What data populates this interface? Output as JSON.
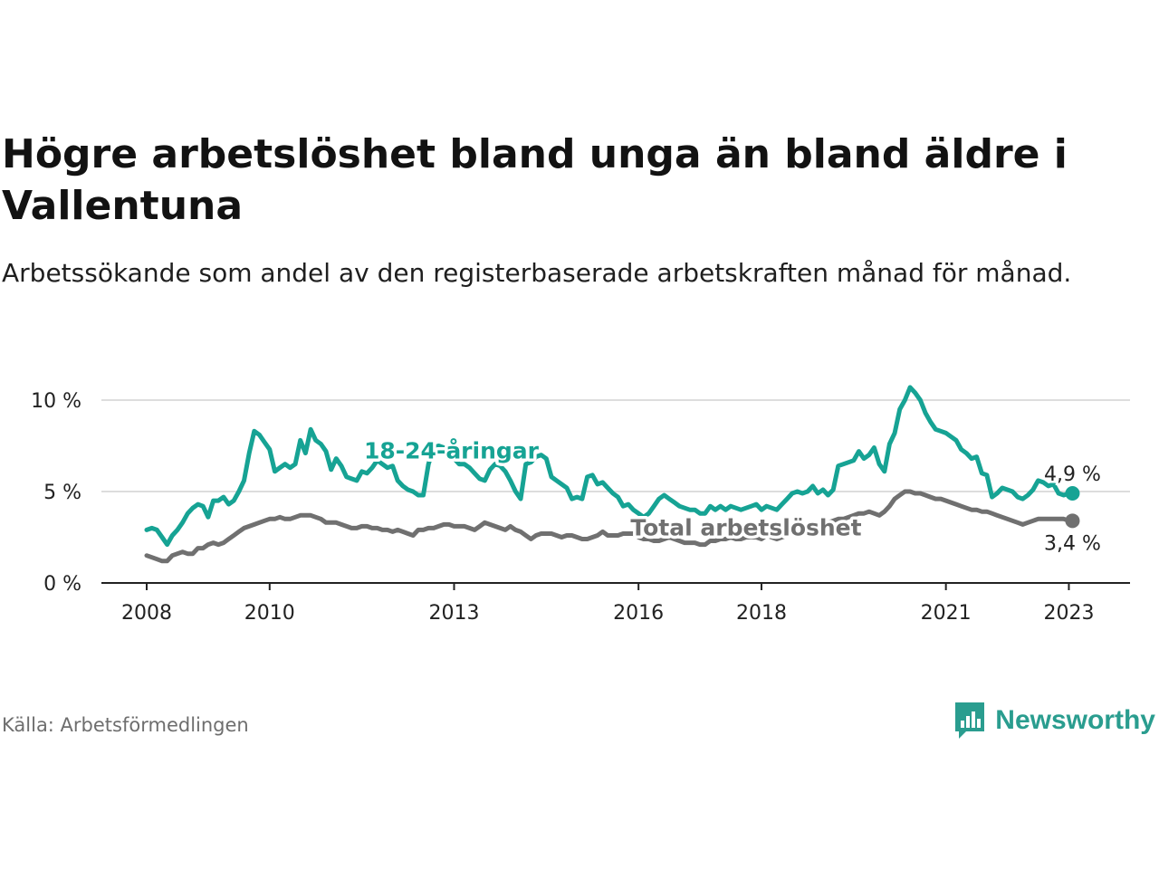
{
  "header": {
    "title": "Högre arbetslöshet bland unga än bland äldre i Vallentuna",
    "subtitle": "Arbetssökande som andel av den registerbaserade arbetskraften månad för månad."
  },
  "footer": {
    "source": "Källa: Arbetsförmedlingen",
    "brand": "Newsworthy",
    "brand_icon": "newsworthy-logo-icon"
  },
  "colors": {
    "youth": "#16a394",
    "total": "#707070",
    "grid": "#dddddd",
    "axis": "#222222",
    "brand": "#2a9d8f"
  },
  "chart_data": {
    "type": "line",
    "title": "Högre arbetslöshet bland unga än bland äldre i Vallentuna",
    "xlabel": "",
    "ylabel": "",
    "x_start": 2008.0,
    "x_step_months": 1,
    "xlim": [
      2008.0,
      2023.17
    ],
    "ylim": [
      0,
      10
    ],
    "y_ticks": [
      0,
      5,
      10
    ],
    "y_tick_labels": [
      "0 %",
      "5 %",
      "10 %"
    ],
    "x_ticks": [
      2008,
      2010,
      2013,
      2016,
      2018,
      2021,
      2023
    ],
    "x_tick_labels": [
      "2008",
      "2010",
      "2013",
      "2016",
      "2018",
      "2021",
      "2023"
    ],
    "grid": true,
    "series": [
      {
        "name": "18-24-åringar",
        "label": "18-24-åringar",
        "end_label": "4,9 %",
        "color": "#16a394",
        "values": [
          2.9,
          3.0,
          2.9,
          2.5,
          2.1,
          2.6,
          2.9,
          3.3,
          3.8,
          4.1,
          4.3,
          4.2,
          3.6,
          4.5,
          4.5,
          4.7,
          4.3,
          4.5,
          5.0,
          5.6,
          7.1,
          8.3,
          8.1,
          7.7,
          7.3,
          6.1,
          6.3,
          6.5,
          6.3,
          6.5,
          7.8,
          7.1,
          8.4,
          7.8,
          7.6,
          7.2,
          6.2,
          6.8,
          6.4,
          5.8,
          5.7,
          5.6,
          6.1,
          6.0,
          6.3,
          6.7,
          6.5,
          6.3,
          6.4,
          5.6,
          5.3,
          5.1,
          5.0,
          4.8,
          4.8,
          6.5,
          7.4,
          7.5,
          7.4,
          7.3,
          6.8,
          6.5,
          6.5,
          6.3,
          6.0,
          5.7,
          5.6,
          6.2,
          6.5,
          6.4,
          6.1,
          5.6,
          5.0,
          4.6,
          6.5,
          6.6,
          6.9,
          7.0,
          6.8,
          5.8,
          5.6,
          5.4,
          5.2,
          4.6,
          4.7,
          4.6,
          5.8,
          5.9,
          5.4,
          5.5,
          5.2,
          4.9,
          4.7,
          4.2,
          4.3,
          4.0,
          3.8,
          3.6,
          3.8,
          4.2,
          4.6,
          4.8,
          4.6,
          4.4,
          4.2,
          4.1,
          4.0,
          4.0,
          3.8,
          3.8,
          4.2,
          4.0,
          4.2,
          4.0,
          4.2,
          4.1,
          4.0,
          4.1,
          4.2,
          4.3,
          4.0,
          4.2,
          4.1,
          4.0,
          4.3,
          4.6,
          4.9,
          5.0,
          4.9,
          5.0,
          5.3,
          4.9,
          5.1,
          4.8,
          5.1,
          6.4,
          6.5,
          6.6,
          6.7,
          7.2,
          6.8,
          7.0,
          7.4,
          6.5,
          6.1,
          7.6,
          8.2,
          9.5,
          10.0,
          10.7,
          10.4,
          10.0,
          9.3,
          8.8,
          8.4,
          8.3,
          8.2,
          8.0,
          7.8,
          7.3,
          7.1,
          6.8,
          6.9,
          6.0,
          5.9,
          4.7,
          4.9,
          5.2,
          5.1,
          5.0,
          4.7,
          4.6,
          4.8,
          5.1,
          5.6,
          5.5,
          5.3,
          5.4,
          4.9,
          4.8,
          4.9
        ]
      },
      {
        "name": "Total arbetslöshet",
        "label": "Total arbetslöshet",
        "end_label": "3,4 %",
        "color": "#707070",
        "values": [
          1.5,
          1.4,
          1.3,
          1.2,
          1.2,
          1.5,
          1.6,
          1.7,
          1.6,
          1.6,
          1.9,
          1.9,
          2.1,
          2.2,
          2.1,
          2.2,
          2.4,
          2.6,
          2.8,
          3.0,
          3.1,
          3.2,
          3.3,
          3.4,
          3.5,
          3.5,
          3.6,
          3.5,
          3.5,
          3.6,
          3.7,
          3.7,
          3.7,
          3.6,
          3.5,
          3.3,
          3.3,
          3.3,
          3.2,
          3.1,
          3.0,
          3.0,
          3.1,
          3.1,
          3.0,
          3.0,
          2.9,
          2.9,
          2.8,
          2.9,
          2.8,
          2.7,
          2.6,
          2.9,
          2.9,
          3.0,
          3.0,
          3.1,
          3.2,
          3.2,
          3.1,
          3.1,
          3.1,
          3.0,
          2.9,
          3.1,
          3.3,
          3.2,
          3.1,
          3.0,
          2.9,
          3.1,
          2.9,
          2.8,
          2.6,
          2.4,
          2.6,
          2.7,
          2.7,
          2.7,
          2.6,
          2.5,
          2.6,
          2.6,
          2.5,
          2.4,
          2.4,
          2.5,
          2.6,
          2.8,
          2.6,
          2.6,
          2.6,
          2.7,
          2.7,
          2.7,
          2.5,
          2.4,
          2.4,
          2.3,
          2.3,
          2.4,
          2.5,
          2.4,
          2.3,
          2.2,
          2.2,
          2.2,
          2.1,
          2.1,
          2.3,
          2.3,
          2.4,
          2.4,
          2.5,
          2.4,
          2.4,
          2.5,
          2.5,
          2.5,
          2.4,
          2.6,
          2.5,
          2.4,
          2.5,
          2.6,
          2.7,
          2.8,
          2.9,
          3.0,
          3.1,
          3.2,
          3.3,
          3.3,
          3.4,
          3.5,
          3.5,
          3.6,
          3.7,
          3.8,
          3.8,
          3.9,
          3.8,
          3.7,
          3.9,
          4.2,
          4.6,
          4.8,
          5.0,
          5.0,
          4.9,
          4.9,
          4.8,
          4.7,
          4.6,
          4.6,
          4.5,
          4.4,
          4.3,
          4.2,
          4.1,
          4.0,
          4.0,
          3.9,
          3.9,
          3.8,
          3.7,
          3.6,
          3.5,
          3.4,
          3.3,
          3.2,
          3.3,
          3.4,
          3.5,
          3.5,
          3.5,
          3.5,
          3.5,
          3.5,
          3.4
        ]
      }
    ]
  }
}
